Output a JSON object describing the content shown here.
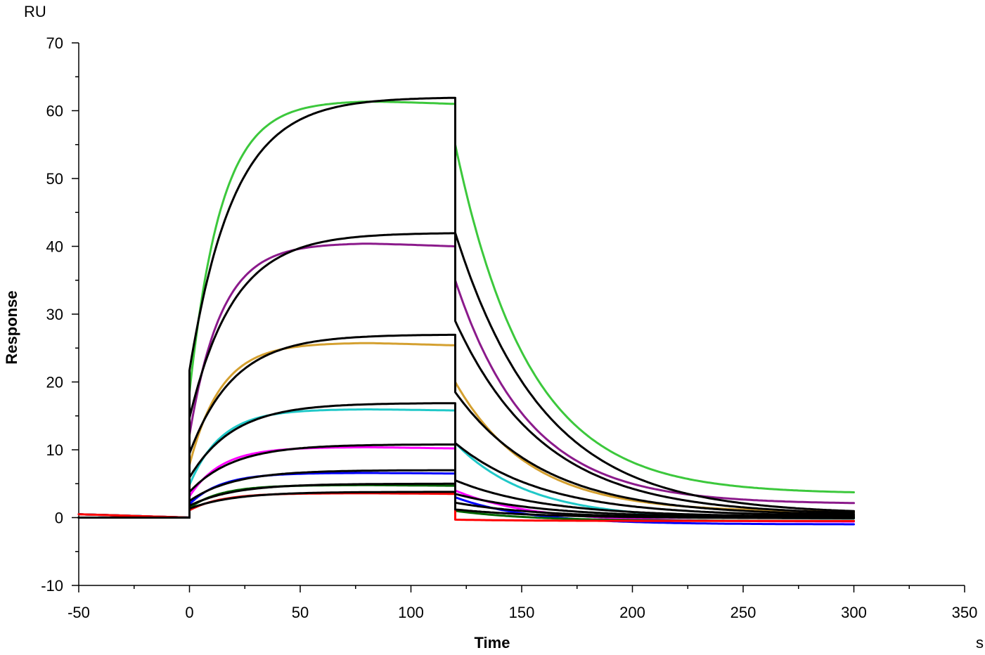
{
  "chart_data": {
    "type": "line",
    "y_unit": "RU",
    "x_unit": "s",
    "xlabel": "Time",
    "ylabel": "Response",
    "xlim": [
      -50,
      350
    ],
    "ylim": [
      -10,
      70
    ],
    "x_ticks": [
      -50,
      0,
      50,
      100,
      150,
      200,
      250,
      300,
      350
    ],
    "y_ticks": [
      -10,
      0,
      10,
      20,
      30,
      40,
      50,
      60,
      70
    ],
    "grid": false,
    "legend": "none",
    "association_start": 0,
    "dissociation_start": 120,
    "end_time": 300,
    "series": [
      {
        "color": "#3cc83c",
        "plateau": 61.5,
        "end_value": 61.0,
        "final_value": 3.5,
        "drop_value": 55,
        "tail": 3.5
      },
      {
        "color": "#8b1a8b",
        "plateau": 40.5,
        "end_value": 40.0,
        "final_value": 2.0,
        "drop_value": 35,
        "tail": 2.0
      },
      {
        "color": "#d4a030",
        "plateau": 25.8,
        "end_value": 25.4,
        "final_value": 0.8,
        "drop_value": 20,
        "tail": 0.8
      },
      {
        "color": "#20c8c8",
        "plateau": 16.0,
        "end_value": 15.8,
        "final_value": -0.2,
        "drop_value": 11,
        "tail": -0.2
      },
      {
        "color": "#ff00ff",
        "plateau": 10.4,
        "end_value": 10.2,
        "final_value": -0.6,
        "drop_value": 4,
        "tail": -0.6
      },
      {
        "color": "#0000ff",
        "plateau": 6.6,
        "end_value": 6.5,
        "final_value": -1.0,
        "drop_value": 3,
        "tail": -1.0
      },
      {
        "color": "#006400",
        "plateau": 4.8,
        "end_value": 4.7,
        "final_value": -0.5,
        "drop_value": 1,
        "tail": -0.5
      },
      {
        "color": "#ff0000",
        "plateau": 3.6,
        "end_value": 3.5,
        "final_value": -0.5,
        "drop_value": -0.3,
        "tail": -0.5
      }
    ],
    "fits": [
      {
        "plateau": 62.0,
        "drop_value": 42,
        "final_value": 0.5
      },
      {
        "plateau": 42.0,
        "drop_value": 29,
        "final_value": 0.4
      },
      {
        "plateau": 27.0,
        "drop_value": 18.5,
        "final_value": 0.3
      },
      {
        "plateau": 16.9,
        "drop_value": 11,
        "final_value": 0.2
      },
      {
        "plateau": 10.8,
        "drop_value": 5.5,
        "final_value": 0.1
      },
      {
        "plateau": 7.0,
        "drop_value": 3.5,
        "final_value": 0.0
      },
      {
        "plateau": 5.0,
        "drop_value": 2.2,
        "final_value": -0.1
      },
      {
        "plateau": 3.8,
        "drop_value": 1.2,
        "final_value": -0.1
      }
    ]
  }
}
